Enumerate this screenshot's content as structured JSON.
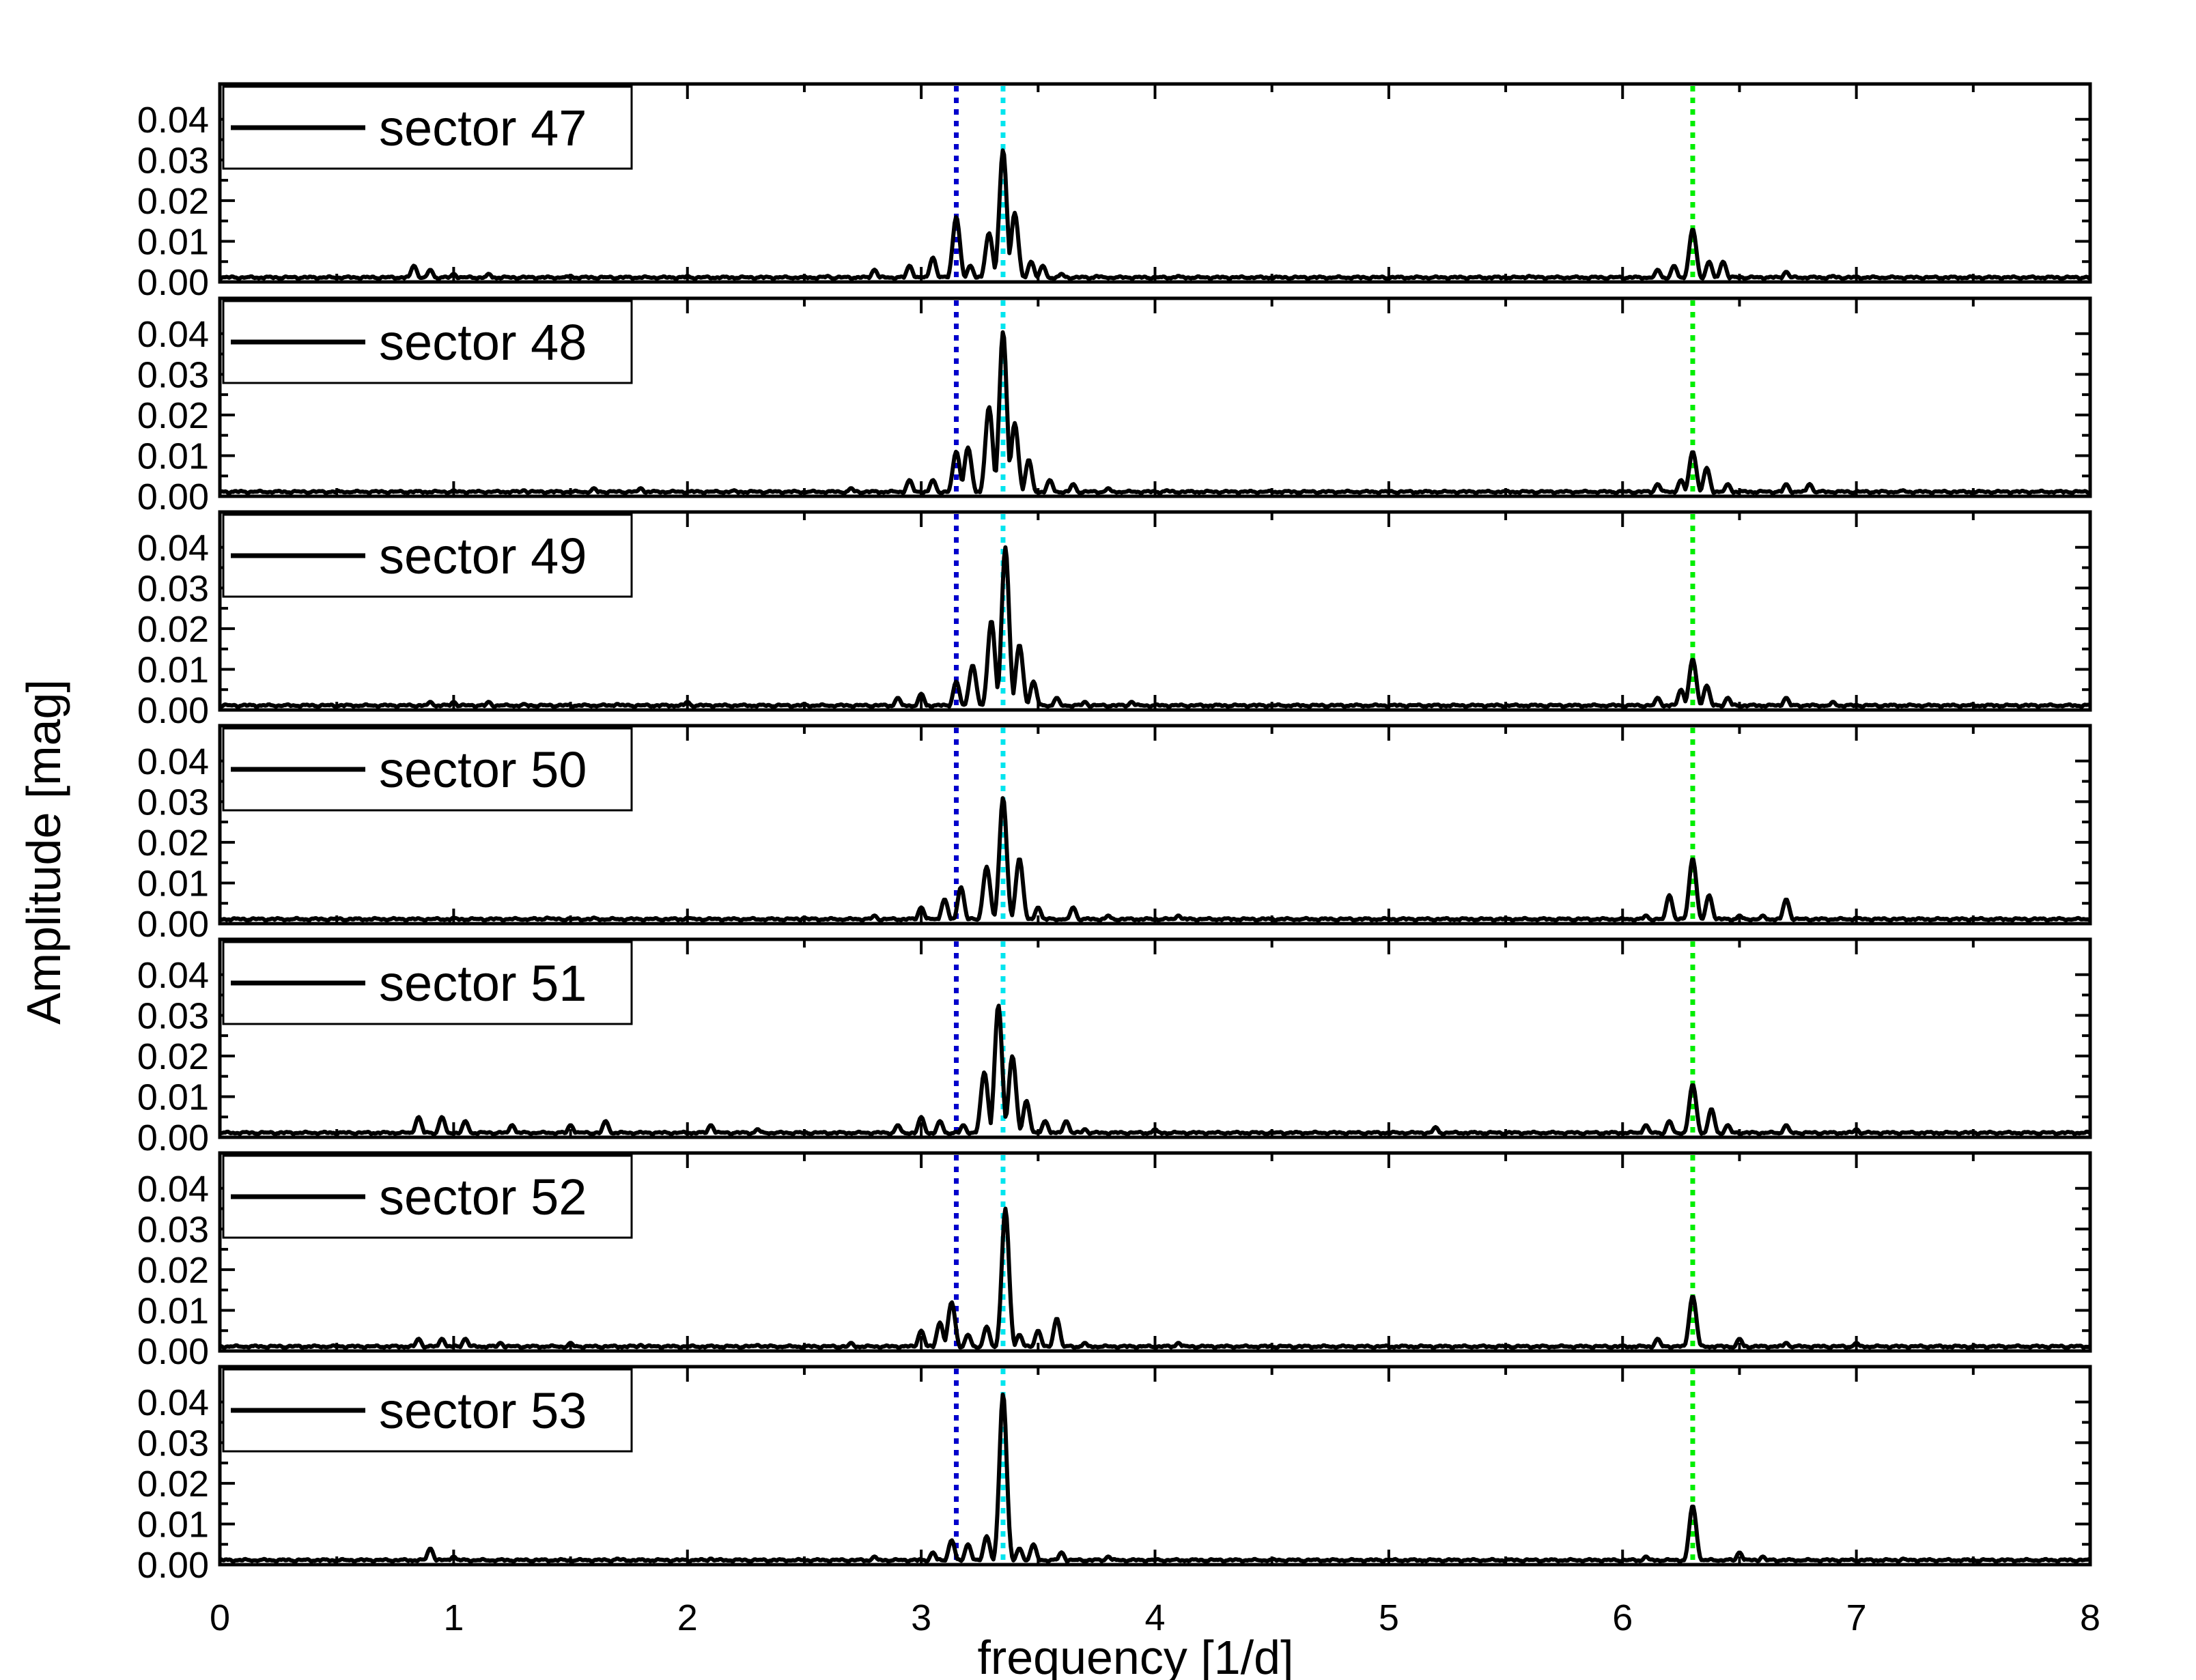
{
  "chart_data": {
    "type": "line",
    "title": "",
    "xlabel": "frequency [1/d]",
    "ylabel": "Amplitude [mag]",
    "xlim": [
      0,
      8
    ],
    "ylim": [
      0,
      0.045
    ],
    "x_ticks": [
      "0",
      "1",
      "2",
      "3",
      "4",
      "5",
      "6",
      "7",
      "8"
    ],
    "y_ticks": [
      "0.00",
      "0.01",
      "0.02",
      "0.03",
      "0.04"
    ],
    "line_color": "#000000",
    "grid": false,
    "legend_position": "top-left",
    "reference_lines": [
      {
        "x": 3.15,
        "color": "#0000cc",
        "style": "dotted"
      },
      {
        "x": 3.35,
        "color": "#00e5ee",
        "style": "dotted"
      },
      {
        "x": 6.3,
        "color": "#00ee00",
        "style": "dotted"
      }
    ],
    "series": [
      {
        "name": "sector 47",
        "peaks": [
          {
            "f": 0.83,
            "a": 0.004
          },
          {
            "f": 0.9,
            "a": 0.003
          },
          {
            "f": 1.0,
            "a": 0.002
          },
          {
            "f": 1.15,
            "a": 0.002
          },
          {
            "f": 1.5,
            "a": 0.0015
          },
          {
            "f": 2.0,
            "a": 0.0015
          },
          {
            "f": 2.6,
            "a": 0.0015
          },
          {
            "f": 2.8,
            "a": 0.003
          },
          {
            "f": 2.95,
            "a": 0.004
          },
          {
            "f": 3.05,
            "a": 0.006
          },
          {
            "f": 3.15,
            "a": 0.016
          },
          {
            "f": 3.21,
            "a": 0.004
          },
          {
            "f": 3.29,
            "a": 0.012
          },
          {
            "f": 3.35,
            "a": 0.0325
          },
          {
            "f": 3.4,
            "a": 0.017
          },
          {
            "f": 3.47,
            "a": 0.005
          },
          {
            "f": 3.52,
            "a": 0.004
          },
          {
            "f": 3.6,
            "a": 0.002
          },
          {
            "f": 3.75,
            "a": 0.0015
          },
          {
            "f": 4.1,
            "a": 0.0015
          },
          {
            "f": 4.4,
            "a": 0.001
          },
          {
            "f": 5.6,
            "a": 0.0015
          },
          {
            "f": 6.15,
            "a": 0.003
          },
          {
            "f": 6.22,
            "a": 0.004
          },
          {
            "f": 6.3,
            "a": 0.013
          },
          {
            "f": 6.37,
            "a": 0.005
          },
          {
            "f": 6.43,
            "a": 0.005
          },
          {
            "f": 6.7,
            "a": 0.0025
          },
          {
            "f": 6.9,
            "a": 0.0015
          },
          {
            "f": 7.4,
            "a": 0.001
          }
        ]
      },
      {
        "name": "sector 48",
        "peaks": [
          {
            "f": 1.0,
            "a": 0.0015
          },
          {
            "f": 1.3,
            "a": 0.0015
          },
          {
            "f": 1.6,
            "a": 0.002
          },
          {
            "f": 1.8,
            "a": 0.002
          },
          {
            "f": 2.2,
            "a": 0.0015
          },
          {
            "f": 2.7,
            "a": 0.002
          },
          {
            "f": 2.95,
            "a": 0.004
          },
          {
            "f": 3.05,
            "a": 0.004
          },
          {
            "f": 3.15,
            "a": 0.011
          },
          {
            "f": 3.2,
            "a": 0.012
          },
          {
            "f": 3.29,
            "a": 0.022
          },
          {
            "f": 3.35,
            "a": 0.0405
          },
          {
            "f": 3.4,
            "a": 0.018
          },
          {
            "f": 3.46,
            "a": 0.009
          },
          {
            "f": 3.55,
            "a": 0.004
          },
          {
            "f": 3.65,
            "a": 0.003
          },
          {
            "f": 3.8,
            "a": 0.002
          },
          {
            "f": 4.05,
            "a": 0.0015
          },
          {
            "f": 4.5,
            "a": 0.001
          },
          {
            "f": 6.15,
            "a": 0.003
          },
          {
            "f": 6.25,
            "a": 0.004
          },
          {
            "f": 6.3,
            "a": 0.011
          },
          {
            "f": 6.36,
            "a": 0.007
          },
          {
            "f": 6.45,
            "a": 0.003
          },
          {
            "f": 6.7,
            "a": 0.003
          },
          {
            "f": 6.8,
            "a": 0.003
          },
          {
            "f": 7.2,
            "a": 0.0015
          }
        ]
      },
      {
        "name": "sector 49",
        "peaks": [
          {
            "f": 0.9,
            "a": 0.002
          },
          {
            "f": 1.0,
            "a": 0.002
          },
          {
            "f": 1.15,
            "a": 0.002
          },
          {
            "f": 1.3,
            "a": 0.0015
          },
          {
            "f": 1.7,
            "a": 0.0015
          },
          {
            "f": 2.0,
            "a": 0.002
          },
          {
            "f": 2.5,
            "a": 0.0015
          },
          {
            "f": 2.9,
            "a": 0.003
          },
          {
            "f": 3.0,
            "a": 0.004
          },
          {
            "f": 3.15,
            "a": 0.007
          },
          {
            "f": 3.22,
            "a": 0.011
          },
          {
            "f": 3.3,
            "a": 0.022
          },
          {
            "f": 3.36,
            "a": 0.04
          },
          {
            "f": 3.42,
            "a": 0.016
          },
          {
            "f": 3.48,
            "a": 0.007
          },
          {
            "f": 3.58,
            "a": 0.003
          },
          {
            "f": 3.7,
            "a": 0.002
          },
          {
            "f": 3.9,
            "a": 0.002
          },
          {
            "f": 6.15,
            "a": 0.003
          },
          {
            "f": 6.25,
            "a": 0.005
          },
          {
            "f": 6.3,
            "a": 0.0125
          },
          {
            "f": 6.36,
            "a": 0.006
          },
          {
            "f": 6.45,
            "a": 0.003
          },
          {
            "f": 6.7,
            "a": 0.003
          },
          {
            "f": 6.9,
            "a": 0.002
          }
        ]
      },
      {
        "name": "sector 50",
        "peaks": [
          {
            "f": 1.0,
            "a": 0.0015
          },
          {
            "f": 1.4,
            "a": 0.0015
          },
          {
            "f": 1.6,
            "a": 0.0015
          },
          {
            "f": 2.0,
            "a": 0.0015
          },
          {
            "f": 2.5,
            "a": 0.0015
          },
          {
            "f": 2.8,
            "a": 0.002
          },
          {
            "f": 3.0,
            "a": 0.004
          },
          {
            "f": 3.1,
            "a": 0.006
          },
          {
            "f": 3.17,
            "a": 0.009
          },
          {
            "f": 3.28,
            "a": 0.014
          },
          {
            "f": 3.35,
            "a": 0.031
          },
          {
            "f": 3.42,
            "a": 0.016
          },
          {
            "f": 3.5,
            "a": 0.004
          },
          {
            "f": 3.65,
            "a": 0.004
          },
          {
            "f": 3.8,
            "a": 0.002
          },
          {
            "f": 4.1,
            "a": 0.002
          },
          {
            "f": 6.1,
            "a": 0.002
          },
          {
            "f": 6.2,
            "a": 0.007
          },
          {
            "f": 6.3,
            "a": 0.016
          },
          {
            "f": 6.37,
            "a": 0.007
          },
          {
            "f": 6.5,
            "a": 0.002
          },
          {
            "f": 6.6,
            "a": 0.002
          },
          {
            "f": 6.7,
            "a": 0.006
          },
          {
            "f": 7.0,
            "a": 0.0015
          }
        ]
      },
      {
        "name": "sector 51",
        "peaks": [
          {
            "f": 0.85,
            "a": 0.005
          },
          {
            "f": 0.95,
            "a": 0.005
          },
          {
            "f": 1.05,
            "a": 0.004
          },
          {
            "f": 1.25,
            "a": 0.003
          },
          {
            "f": 1.5,
            "a": 0.003
          },
          {
            "f": 1.65,
            "a": 0.004
          },
          {
            "f": 2.1,
            "a": 0.003
          },
          {
            "f": 2.3,
            "a": 0.002
          },
          {
            "f": 2.9,
            "a": 0.003
          },
          {
            "f": 3.0,
            "a": 0.005
          },
          {
            "f": 3.08,
            "a": 0.004
          },
          {
            "f": 3.18,
            "a": 0.003
          },
          {
            "f": 3.27,
            "a": 0.016
          },
          {
            "f": 3.33,
            "a": 0.0325
          },
          {
            "f": 3.39,
            "a": 0.02
          },
          {
            "f": 3.45,
            "a": 0.009
          },
          {
            "f": 3.53,
            "a": 0.004
          },
          {
            "f": 3.62,
            "a": 0.004
          },
          {
            "f": 3.7,
            "a": 0.002
          },
          {
            "f": 4.0,
            "a": 0.002
          },
          {
            "f": 5.2,
            "a": 0.0025
          },
          {
            "f": 6.1,
            "a": 0.003
          },
          {
            "f": 6.2,
            "a": 0.004
          },
          {
            "f": 6.3,
            "a": 0.013
          },
          {
            "f": 6.38,
            "a": 0.007
          },
          {
            "f": 6.45,
            "a": 0.003
          },
          {
            "f": 6.7,
            "a": 0.003
          },
          {
            "f": 7.0,
            "a": 0.002
          }
        ]
      },
      {
        "name": "sector 52",
        "peaks": [
          {
            "f": 0.85,
            "a": 0.003
          },
          {
            "f": 0.95,
            "a": 0.003
          },
          {
            "f": 1.05,
            "a": 0.003
          },
          {
            "f": 1.2,
            "a": 0.002
          },
          {
            "f": 1.5,
            "a": 0.002
          },
          {
            "f": 1.8,
            "a": 0.0015
          },
          {
            "f": 2.3,
            "a": 0.0015
          },
          {
            "f": 2.7,
            "a": 0.002
          },
          {
            "f": 3.0,
            "a": 0.005
          },
          {
            "f": 3.08,
            "a": 0.007
          },
          {
            "f": 3.13,
            "a": 0.012
          },
          {
            "f": 3.2,
            "a": 0.004
          },
          {
            "f": 3.28,
            "a": 0.006
          },
          {
            "f": 3.36,
            "a": 0.035
          },
          {
            "f": 3.42,
            "a": 0.004
          },
          {
            "f": 3.5,
            "a": 0.005
          },
          {
            "f": 3.58,
            "a": 0.008
          },
          {
            "f": 3.7,
            "a": 0.002
          },
          {
            "f": 4.1,
            "a": 0.002
          },
          {
            "f": 6.15,
            "a": 0.003
          },
          {
            "f": 6.3,
            "a": 0.0135
          },
          {
            "f": 6.5,
            "a": 0.003
          },
          {
            "f": 6.7,
            "a": 0.002
          },
          {
            "f": 7.0,
            "a": 0.002
          }
        ]
      },
      {
        "name": "sector 53",
        "peaks": [
          {
            "f": 0.9,
            "a": 0.004
          },
          {
            "f": 1.0,
            "a": 0.002
          },
          {
            "f": 1.7,
            "a": 0.0015
          },
          {
            "f": 2.1,
            "a": 0.0015
          },
          {
            "f": 2.8,
            "a": 0.002
          },
          {
            "f": 3.05,
            "a": 0.003
          },
          {
            "f": 3.13,
            "a": 0.006
          },
          {
            "f": 3.2,
            "a": 0.005
          },
          {
            "f": 3.28,
            "a": 0.007
          },
          {
            "f": 3.35,
            "a": 0.042
          },
          {
            "f": 3.42,
            "a": 0.004
          },
          {
            "f": 3.48,
            "a": 0.005
          },
          {
            "f": 3.6,
            "a": 0.003
          },
          {
            "f": 3.8,
            "a": 0.002
          },
          {
            "f": 6.1,
            "a": 0.002
          },
          {
            "f": 6.3,
            "a": 0.0145
          },
          {
            "f": 6.5,
            "a": 0.003
          },
          {
            "f": 6.6,
            "a": 0.002
          },
          {
            "f": 7.2,
            "a": 0.0015
          }
        ]
      }
    ]
  }
}
